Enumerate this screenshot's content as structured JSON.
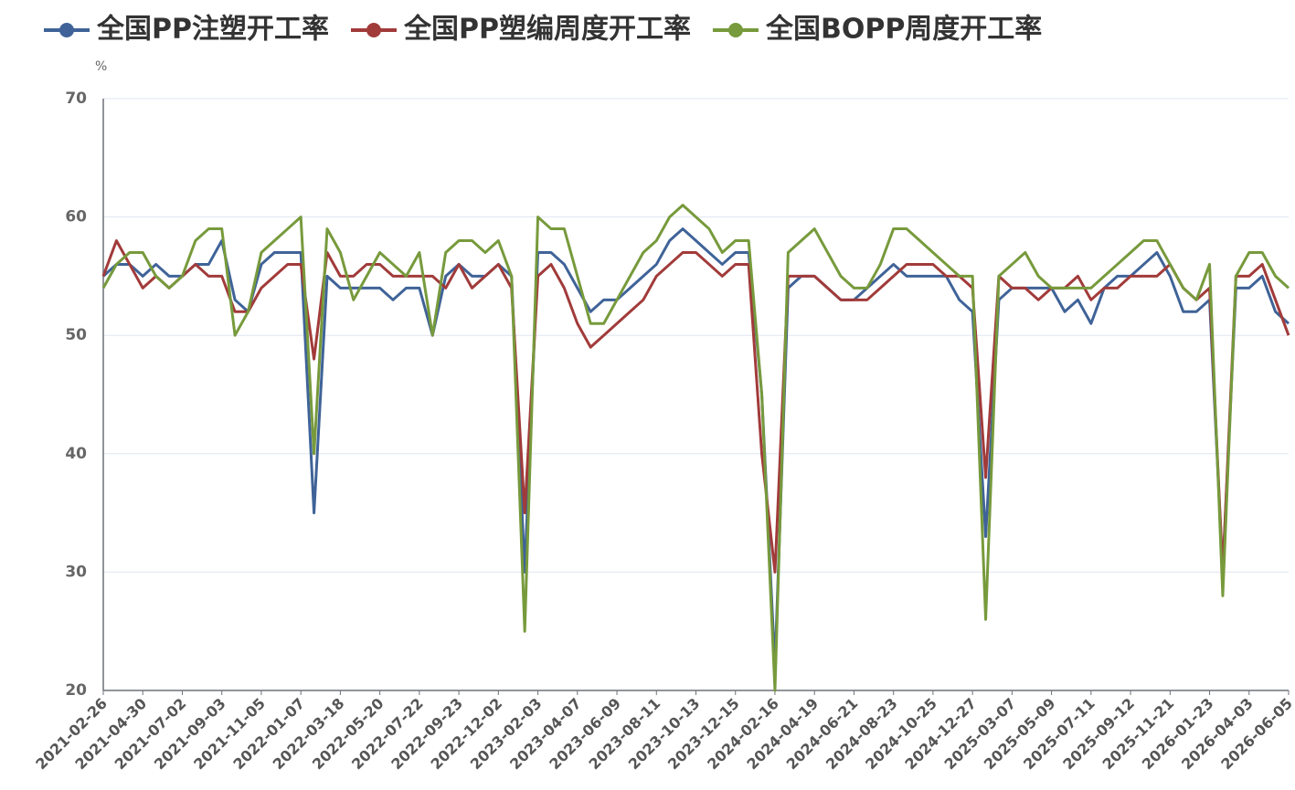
{
  "chart_data": {
    "type": "line",
    "y_label": "%",
    "categories": [
      "2021-02-26",
      null,
      null,
      "2021-04-30",
      null,
      null,
      "2021-07-02",
      null,
      null,
      "2021-09-03",
      null,
      null,
      "2021-11-05",
      null,
      null,
      "2022-01-07",
      null,
      null,
      "2022-03-18",
      null,
      null,
      "2022-05-20",
      null,
      null,
      "2022-07-22",
      null,
      null,
      "2022-09-23",
      null,
      null,
      "2022-12-02",
      null,
      null,
      "2023-02-03",
      null,
      null,
      "2023-04-07",
      null,
      null,
      "2023-06-09",
      null,
      null,
      "2023-08-11",
      null,
      null,
      "2023-10-13",
      null,
      null,
      "2023-12-15",
      null,
      null,
      "2024-02-16",
      null,
      null,
      "2024-04-19",
      null,
      null,
      "2024-06-21",
      null,
      null,
      "2024-08-23",
      null,
      null,
      "2024-10-25",
      null,
      null,
      "2024-12-27",
      null,
      null,
      "2025-03-07",
      null,
      null,
      "2025-05-09",
      null,
      null,
      "2025-07-11",
      null,
      null,
      "2025-09-12",
      null,
      null,
      "2025-11-21",
      null,
      null,
      "2026-01-23",
      null,
      null,
      "2026-04-03",
      null,
      null,
      "2026-06-05"
    ],
    "series": [
      {
        "name": "全国PP注塑开工率",
        "color": "#3f6398",
        "values": [
          55,
          56,
          56,
          55,
          56,
          55,
          55,
          56,
          56,
          58,
          53,
          52,
          56,
          57,
          57,
          57,
          35,
          55,
          54,
          54,
          54,
          54,
          53,
          54,
          54,
          50,
          55,
          56,
          55,
          55,
          56,
          55,
          30,
          57,
          57,
          56,
          54,
          52,
          53,
          53,
          54,
          55,
          56,
          58,
          59,
          58,
          57,
          56,
          57,
          57,
          45,
          22,
          54,
          55,
          55,
          54,
          53,
          53,
          54,
          55,
          56,
          55,
          55,
          55,
          55,
          53,
          52,
          33,
          53,
          54,
          54,
          54,
          54,
          52,
          53,
          51,
          54,
          55,
          55,
          56,
          57,
          55,
          52,
          52,
          53,
          30,
          54,
          54,
          55,
          52,
          51
        ]
      },
      {
        "name": "全国PP塑编周度开工率",
        "color": "#a13b3a",
        "values": [
          55,
          58,
          56,
          54,
          55,
          54,
          55,
          56,
          55,
          55,
          52,
          52,
          54,
          55,
          56,
          56,
          48,
          57,
          55,
          55,
          56,
          56,
          55,
          55,
          55,
          55,
          54,
          56,
          54,
          55,
          56,
          54,
          35,
          55,
          56,
          54,
          51,
          49,
          50,
          51,
          52,
          53,
          55,
          56,
          57,
          57,
          56,
          55,
          56,
          56,
          40,
          30,
          55,
          55,
          55,
          54,
          53,
          53,
          53,
          54,
          55,
          56,
          56,
          56,
          55,
          55,
          54,
          38,
          55,
          54,
          54,
          53,
          54,
          54,
          55,
          53,
          54,
          54,
          55,
          55,
          55,
          56,
          54,
          53,
          54,
          30,
          55,
          55,
          56,
          53,
          50
        ]
      },
      {
        "name": "全国BOPP周度开工率",
        "color": "#779a3c",
        "values": [
          54,
          56,
          57,
          57,
          55,
          54,
          55,
          58,
          59,
          59,
          50,
          52,
          57,
          58,
          59,
          60,
          40,
          59,
          57,
          53,
          55,
          57,
          56,
          55,
          57,
          50,
          57,
          58,
          58,
          57,
          58,
          55,
          25,
          60,
          59,
          59,
          55,
          51,
          51,
          53,
          55,
          57,
          58,
          60,
          61,
          60,
          59,
          57,
          58,
          58,
          45,
          20,
          57,
          58,
          59,
          57,
          55,
          54,
          54,
          56,
          59,
          59,
          58,
          57,
          56,
          55,
          55,
          26,
          55,
          56,
          57,
          55,
          54,
          54,
          54,
          54,
          55,
          56,
          57,
          58,
          58,
          56,
          54,
          53,
          56,
          28,
          55,
          57,
          57,
          55,
          54
        ]
      }
    ],
    "ylim": [
      20,
      70
    ],
    "yticks": [
      20,
      30,
      40,
      50,
      60,
      70
    ],
    "grid": true
  }
}
